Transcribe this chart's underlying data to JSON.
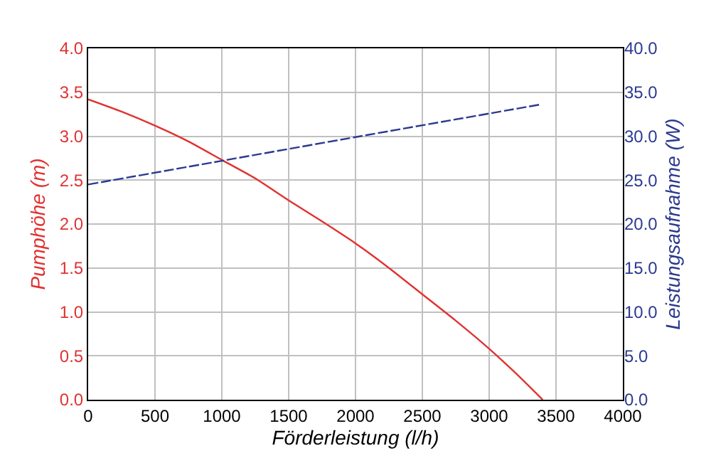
{
  "chart_data": {
    "type": "line",
    "xlabel": "Förderleistung (l/h)",
    "ylabel": "Pumphöhe (m)",
    "y2label": "Leistungsaufnahme (W)",
    "series": [
      {
        "color": "#e03232",
        "line_style": "solid",
        "x": [
          0,
          250,
          500,
          750,
          1000,
          1250,
          1500,
          1750,
          2000,
          2250,
          2500,
          2750,
          3000,
          3200,
          3400
        ],
        "values": [
          3.42,
          3.28,
          3.12,
          2.94,
          2.73,
          2.52,
          2.27,
          2.03,
          1.78,
          1.5,
          1.2,
          0.9,
          0.58,
          0.3,
          0.0
        ]
      },
      {
        "color": "#2b3990",
        "line_style": "dashed",
        "axis": "y2",
        "x": [
          0,
          1000,
          2000,
          3380
        ],
        "values": [
          24.5,
          27.2,
          29.9,
          33.6
        ]
      }
    ],
    "xlim": [
      0,
      4000
    ],
    "xticks": [
      0,
      500,
      1000,
      1500,
      2000,
      2500,
      3000,
      3500,
      4000
    ],
    "ylim": [
      0,
      4
    ],
    "yticks": [
      {
        "value": 0,
        "label": "0.0"
      },
      0.5,
      {
        "value": 1,
        "label": "1.0"
      },
      1.5,
      {
        "value": 2,
        "label": "2.0"
      },
      2.5,
      {
        "value": 3,
        "label": "3.0"
      },
      3.5,
      {
        "value": 4,
        "label": "4.0"
      }
    ],
    "y2lim": [
      0,
      40
    ],
    "y2ticks": [
      {
        "value": 0,
        "label": "0.0"
      },
      {
        "value": 5,
        "label": "5.0"
      },
      {
        "value": 10,
        "label": "10.0"
      },
      {
        "value": 15,
        "label": "15.0"
      },
      {
        "value": 20,
        "label": "20.0"
      },
      {
        "value": 25,
        "label": "25.0"
      },
      {
        "value": 30,
        "label": "30.0"
      },
      {
        "value": 35,
        "label": "35.0"
      },
      {
        "value": 40,
        "label": "40.0"
      }
    ],
    "grid": true
  }
}
